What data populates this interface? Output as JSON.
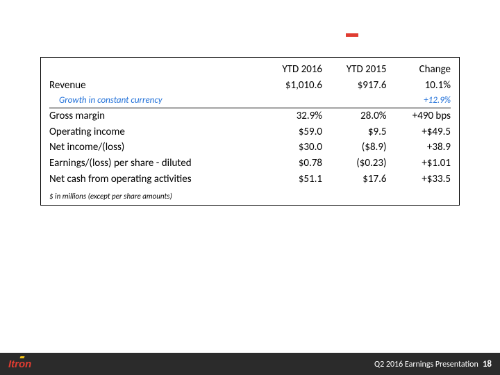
{
  "slide": {
    "background_color": "#ffffff",
    "accent_color": "#e03c31"
  },
  "table": {
    "border_color": "#000000",
    "text_color": "#000000",
    "cc_color": "#1f6fd8",
    "font_size_body": 15,
    "font_size_cc": 13,
    "font_size_footnote": 11,
    "columns": [
      "",
      "YTD 2016",
      "YTD 2015",
      "Change"
    ],
    "revenue_row": {
      "label": "Revenue",
      "a": "$1,010.6",
      "b": "$917.6",
      "c": "10.1%"
    },
    "cc_row": {
      "label": "Growth in constant currency",
      "a": "",
      "b": "",
      "c": "+12.9%"
    },
    "body_rows": [
      {
        "label": "Gross margin",
        "a": "32.9%",
        "b": "28.0%",
        "c": "+490 bps"
      },
      {
        "label": "Operating income",
        "a": "$59.0",
        "b": "$9.5",
        "c": "+$49.5"
      },
      {
        "label": "Net income/(loss)",
        "a": "$30.0",
        "b": "($8.9)",
        "c": "+38.9"
      },
      {
        "label": "Earnings/(loss) per share - diluted",
        "a": "$0.78",
        "b": "($0.23)",
        "c": "+$1.01"
      },
      {
        "label": "Net cash from operating activities",
        "a": "$51.1",
        "b": "$17.6",
        "c": "+$33.5"
      }
    ],
    "footnote": "$ in millions (except per share amounts)"
  },
  "footer": {
    "background_color": "#2b2b2b",
    "logo_text": "Itron",
    "logo_color": "#e03c31",
    "logo_accent_color": "#f5c518",
    "caption": "Q2 2016 Earnings Presentation",
    "page_number": "18",
    "text_color": "#ffffff"
  }
}
